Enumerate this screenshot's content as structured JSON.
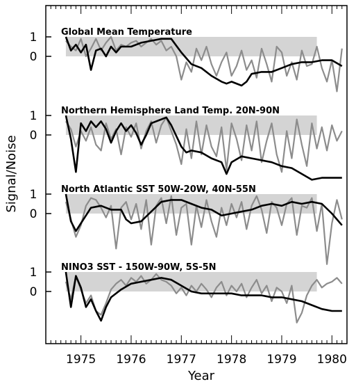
{
  "chart_data": {
    "type": "line",
    "xlabel": "Year",
    "ylabel": "Signal/Noise",
    "xlim": [
      1974.3,
      1980.3
    ],
    "x_tick_labels": [
      "1975",
      "1976",
      "1977",
      "1978",
      "1979",
      "1980"
    ],
    "y_tick_labels": [
      "1",
      "0"
    ],
    "band": {
      "from": 0,
      "to": 1,
      "x_start": 1974.7,
      "x_end": 1979.7,
      "color": "#d4d4d4"
    },
    "series_styles": {
      "smooth": {
        "color": "#000000"
      },
      "raw": {
        "color": "#8c8c8c"
      }
    },
    "panels": [
      {
        "title": "Global Mean Temperature",
        "smooth": {
          "x": [
            1974.7,
            1974.8,
            1974.9,
            1975.0,
            1975.1,
            1975.2,
            1975.3,
            1975.4,
            1975.5,
            1975.6,
            1975.7,
            1975.8,
            1975.9,
            1976.0,
            1976.2,
            1976.4,
            1976.6,
            1976.8,
            1977.0,
            1977.2,
            1977.4,
            1977.6,
            1977.8,
            1977.9,
            1978.0,
            1978.2,
            1978.3,
            1978.4,
            1978.6,
            1978.8,
            1979.0,
            1979.2,
            1979.4,
            1979.6,
            1979.8,
            1980.0,
            1980.2
          ],
          "y": [
            1.0,
            0.3,
            0.6,
            0.2,
            0.6,
            -0.7,
            0.3,
            0.4,
            0.0,
            0.5,
            0.2,
            0.5,
            0.5,
            0.5,
            0.7,
            0.8,
            0.9,
            0.9,
            0.2,
            -0.4,
            -0.6,
            -1.0,
            -1.3,
            -1.4,
            -1.3,
            -1.5,
            -1.3,
            -0.9,
            -0.8,
            -0.8,
            -0.6,
            -0.4,
            -0.3,
            -0.3,
            -0.2,
            -0.2,
            -0.5
          ]
        },
        "raw": {
          "x": [
            1974.7,
            1974.8,
            1974.9,
            1975.0,
            1975.1,
            1975.2,
            1975.3,
            1975.4,
            1975.5,
            1975.6,
            1975.7,
            1975.8,
            1975.9,
            1976.0,
            1976.1,
            1976.2,
            1976.3,
            1976.4,
            1976.5,
            1976.6,
            1976.7,
            1976.8,
            1976.9,
            1977.0,
            1977.1,
            1977.2,
            1977.3,
            1977.4,
            1977.5,
            1977.6,
            1977.7,
            1977.8,
            1977.9,
            1978.0,
            1978.1,
            1978.2,
            1978.3,
            1978.4,
            1978.5,
            1978.6,
            1978.7,
            1978.8,
            1978.9,
            1979.0,
            1979.1,
            1979.2,
            1979.3,
            1979.4,
            1979.5,
            1979.6,
            1979.7,
            1979.8,
            1979.9,
            1980.0,
            1980.1,
            1980.2
          ],
          "y": [
            0.8,
            0.5,
            0.3,
            0.9,
            0.0,
            0.4,
            0.9,
            0.3,
            0.7,
            1.0,
            0.3,
            0.6,
            0.5,
            0.7,
            0.8,
            0.5,
            0.7,
            0.9,
            0.6,
            0.8,
            0.3,
            0.5,
            0.0,
            -1.2,
            -0.3,
            -0.8,
            0.4,
            -0.2,
            0.5,
            -0.4,
            -1.0,
            -0.3,
            0.2,
            -1.0,
            -0.5,
            0.3,
            -0.7,
            -0.2,
            -1.1,
            0.4,
            -0.4,
            -1.3,
            0.5,
            0.2,
            -1.0,
            -0.3,
            -1.2,
            0.3,
            -0.5,
            -0.4,
            0.5,
            -0.6,
            -1.3,
            -0.2,
            -1.8,
            0.4
          ]
        }
      },
      {
        "title": "Northern Hemisphere Land Temp. 20N-90N",
        "smooth": {
          "x": [
            1974.7,
            1974.8,
            1974.9,
            1975.0,
            1975.1,
            1975.2,
            1975.3,
            1975.4,
            1975.5,
            1975.6,
            1975.7,
            1975.8,
            1975.9,
            1976.0,
            1976.1,
            1976.2,
            1976.3,
            1976.4,
            1976.6,
            1976.7,
            1976.8,
            1977.0,
            1977.1,
            1977.2,
            1977.4,
            1977.6,
            1977.8,
            1977.9,
            1978.0,
            1978.2,
            1978.4,
            1978.6,
            1978.8,
            1979.0,
            1979.2,
            1979.4,
            1979.6,
            1979.8,
            1980.0,
            1980.2
          ],
          "y": [
            1.0,
            -0.2,
            -1.9,
            0.6,
            0.2,
            0.7,
            0.4,
            0.7,
            0.3,
            -0.4,
            0.2,
            0.6,
            0.2,
            0.5,
            0.1,
            -0.5,
            0.0,
            0.6,
            0.8,
            0.9,
            0.5,
            -0.6,
            -0.9,
            -0.8,
            -0.9,
            -1.2,
            -1.4,
            -2.0,
            -1.4,
            -1.1,
            -1.2,
            -1.3,
            -1.4,
            -1.6,
            -1.7,
            -2.0,
            -2.3,
            -2.2,
            -2.2,
            -2.2
          ]
        },
        "raw": {
          "x": [
            1974.7,
            1974.8,
            1974.9,
            1975.0,
            1975.1,
            1975.2,
            1975.3,
            1975.4,
            1975.5,
            1975.6,
            1975.7,
            1975.8,
            1975.9,
            1976.0,
            1976.1,
            1976.2,
            1976.3,
            1976.4,
            1976.5,
            1976.6,
            1976.7,
            1976.8,
            1976.9,
            1977.0,
            1977.1,
            1977.2,
            1977.3,
            1977.4,
            1977.5,
            1977.6,
            1977.7,
            1977.8,
            1977.9,
            1978.0,
            1978.1,
            1978.2,
            1978.3,
            1978.4,
            1978.5,
            1978.6,
            1978.7,
            1978.8,
            1978.9,
            1979.0,
            1979.1,
            1979.2,
            1979.3,
            1979.4,
            1979.5,
            1979.6,
            1979.7,
            1979.8,
            1979.9,
            1980.0,
            1980.1,
            1980.2
          ],
          "y": [
            0.7,
            0.3,
            -0.6,
            0.2,
            -0.3,
            0.4,
            -0.5,
            -0.8,
            0.6,
            -0.2,
            0.3,
            -1.0,
            0.4,
            -0.1,
            0.6,
            -0.7,
            0.2,
            0.7,
            -0.4,
            0.5,
            0.9,
            0.2,
            -0.5,
            -1.5,
            0.3,
            -1.2,
            0.7,
            -1.0,
            0.5,
            -0.6,
            -1.1,
            0.4,
            -1.8,
            0.6,
            -0.2,
            -1.3,
            0.5,
            -0.8,
            0.7,
            -1.4,
            -0.3,
            0.6,
            -1.0,
            -1.9,
            0.2,
            -1.2,
            0.8,
            -0.5,
            -1.6,
            0.6,
            -0.7,
            0.4,
            -0.8,
            0.5,
            -0.3,
            0.2
          ]
        }
      },
      {
        "title": "North Atlantic SST 50W-20W, 40N-55N",
        "smooth": {
          "x": [
            1974.7,
            1974.8,
            1974.9,
            1975.0,
            1975.2,
            1975.4,
            1975.6,
            1975.8,
            1975.9,
            1976.0,
            1976.2,
            1976.4,
            1976.6,
            1976.8,
            1977.0,
            1977.2,
            1977.4,
            1977.6,
            1977.8,
            1978.0,
            1978.2,
            1978.4,
            1978.6,
            1978.8,
            1979.0,
            1979.2,
            1979.4,
            1979.6,
            1979.8,
            1980.0,
            1980.2
          ],
          "y": [
            1.0,
            -0.4,
            -0.9,
            -0.5,
            0.3,
            0.4,
            0.2,
            0.2,
            -0.3,
            -0.5,
            -0.4,
            0.1,
            0.6,
            0.7,
            0.7,
            0.5,
            0.3,
            0.2,
            -0.1,
            0.0,
            0.1,
            0.2,
            0.4,
            0.5,
            0.4,
            0.6,
            0.5,
            0.6,
            0.5,
            0.0,
            -0.6
          ]
        },
        "raw": {
          "x": [
            1974.7,
            1974.8,
            1974.9,
            1975.0,
            1975.1,
            1975.2,
            1975.3,
            1975.4,
            1975.5,
            1975.6,
            1975.7,
            1975.8,
            1975.9,
            1976.0,
            1976.1,
            1976.2,
            1976.3,
            1976.4,
            1976.5,
            1976.6,
            1976.7,
            1976.8,
            1976.9,
            1977.0,
            1977.1,
            1977.2,
            1977.3,
            1977.4,
            1977.5,
            1977.6,
            1977.7,
            1977.8,
            1977.9,
            1978.0,
            1978.1,
            1978.2,
            1978.3,
            1978.4,
            1978.5,
            1978.6,
            1978.7,
            1978.8,
            1978.9,
            1979.0,
            1979.1,
            1979.2,
            1979.3,
            1979.4,
            1979.5,
            1979.6,
            1979.7,
            1979.8,
            1979.9,
            1980.0,
            1980.1,
            1980.2
          ],
          "y": [
            0.6,
            -0.3,
            -1.2,
            -0.6,
            0.4,
            0.8,
            0.7,
            0.3,
            -0.2,
            0.4,
            -1.8,
            0.3,
            0.6,
            -0.3,
            0.5,
            -0.8,
            0.7,
            -1.6,
            0.4,
            0.8,
            -0.5,
            0.9,
            -1.1,
            0.3,
            0.5,
            -1.6,
            0.4,
            -0.7,
            0.7,
            -0.4,
            -1.2,
            0.3,
            -0.6,
            0.5,
            -0.2,
            0.6,
            -0.8,
            0.4,
            0.9,
            0.2,
            -1.0,
            0.6,
            0.3,
            -0.6,
            0.5,
            0.8,
            -1.1,
            0.4,
            0.3,
            0.8,
            -0.9,
            0.5,
            -2.6,
            -0.5,
            0.7,
            -0.3
          ]
        }
      },
      {
        "title": "NINO3 SST - 150W-90W, 5S-5N",
        "smooth": {
          "x": [
            1974.7,
            1974.8,
            1974.9,
            1975.0,
            1975.1,
            1975.2,
            1975.3,
            1975.4,
            1975.5,
            1975.6,
            1975.8,
            1976.0,
            1976.2,
            1976.4,
            1976.6,
            1976.8,
            1977.0,
            1977.2,
            1977.4,
            1977.6,
            1977.8,
            1978.0,
            1978.2,
            1978.4,
            1978.6,
            1978.8,
            1979.0,
            1979.2,
            1979.4,
            1979.6,
            1979.8,
            1980.0,
            1980.2
          ],
          "y": [
            1.0,
            -0.8,
            0.8,
            0.2,
            -0.8,
            -0.4,
            -1.0,
            -1.5,
            -0.8,
            -0.3,
            0.1,
            0.4,
            0.5,
            0.6,
            0.7,
            0.6,
            0.3,
            0.0,
            -0.1,
            -0.1,
            -0.1,
            -0.1,
            -0.2,
            -0.2,
            -0.2,
            -0.3,
            -0.3,
            -0.4,
            -0.5,
            -0.7,
            -0.9,
            -1.0,
            -1.0
          ]
        },
        "raw": {
          "x": [
            1974.7,
            1974.8,
            1974.9,
            1975.0,
            1975.1,
            1975.2,
            1975.3,
            1975.4,
            1975.5,
            1975.6,
            1975.7,
            1975.8,
            1975.9,
            1976.0,
            1976.1,
            1976.2,
            1976.3,
            1976.4,
            1976.5,
            1976.6,
            1976.7,
            1976.8,
            1976.9,
            1977.0,
            1977.1,
            1977.2,
            1977.3,
            1977.4,
            1977.5,
            1977.6,
            1977.7,
            1977.8,
            1977.9,
            1978.0,
            1978.1,
            1978.2,
            1978.3,
            1978.4,
            1978.5,
            1978.6,
            1978.7,
            1978.8,
            1978.9,
            1979.0,
            1979.1,
            1979.2,
            1979.3,
            1979.4,
            1979.5,
            1979.6,
            1979.7,
            1979.8,
            1979.9,
            1980.0,
            1980.1,
            1980.2
          ],
          "y": [
            0.5,
            -0.4,
            0.8,
            0.1,
            -0.6,
            -0.2,
            -1.0,
            -1.2,
            -0.6,
            0.1,
            0.4,
            0.6,
            0.3,
            0.7,
            0.5,
            0.8,
            0.4,
            0.6,
            0.9,
            0.6,
            0.5,
            0.3,
            -0.1,
            0.2,
            -0.2,
            0.3,
            0.0,
            0.4,
            0.1,
            -0.3,
            0.2,
            0.5,
            -0.2,
            0.3,
            0.0,
            0.4,
            -0.3,
            0.2,
            0.6,
            -0.1,
            0.3,
            -0.5,
            0.2,
            0.0,
            -0.6,
            0.3,
            -1.6,
            -1.1,
            -0.2,
            0.3,
            0.6,
            0.2,
            0.4,
            0.5,
            0.7,
            0.4
          ]
        }
      }
    ]
  }
}
